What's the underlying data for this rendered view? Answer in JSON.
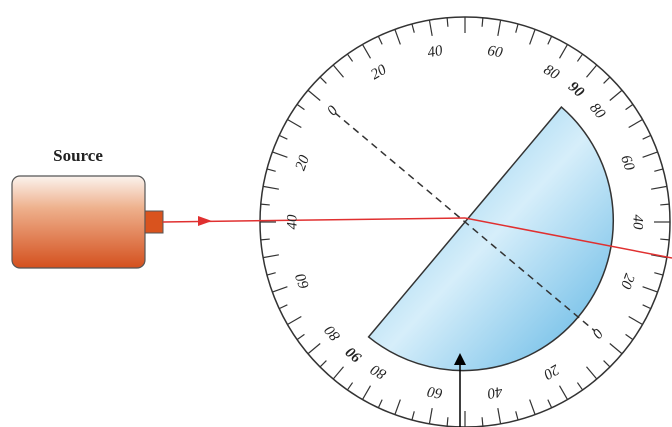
{
  "source_label": "Source",
  "dial": {
    "labels": [
      0,
      20,
      40,
      60,
      80,
      90,
      80,
      60,
      40,
      20,
      0,
      20,
      40,
      60,
      80,
      90,
      80,
      60,
      40,
      20
    ]
  }
}
